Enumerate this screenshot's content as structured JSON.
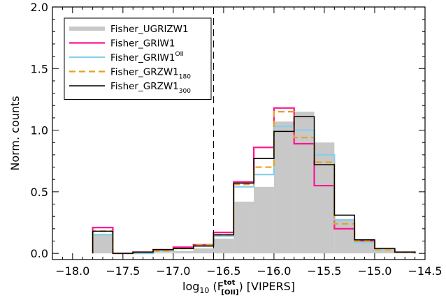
{
  "chart_data": {
    "type": "histogram",
    "xlabel_parts": {
      "prefix": "log",
      "base": "10",
      "open": " (F",
      "sup": "tot",
      "sub": "[OII]",
      "close": ") [VIPERS]"
    },
    "ylabel": "Norm. counts",
    "xlim": [
      -18.2,
      -14.5
    ],
    "ylim": [
      -0.05,
      2.0
    ],
    "xticks": [
      {
        "v": -18.0,
        "label": "−18.0"
      },
      {
        "v": -17.5,
        "label": "−17.5"
      },
      {
        "v": -17.0,
        "label": "−17.0"
      },
      {
        "v": -16.5,
        "label": "−16.5"
      },
      {
        "v": -16.0,
        "label": "−16.0"
      },
      {
        "v": -15.5,
        "label": "−15.5"
      },
      {
        "v": -15.0,
        "label": "−15.0"
      },
      {
        "v": -14.5,
        "label": "−14.5"
      }
    ],
    "yticks": [
      {
        "v": 0.0,
        "label": "0.0"
      },
      {
        "v": 0.5,
        "label": "0.5"
      },
      {
        "v": 1.0,
        "label": "1.0"
      },
      {
        "v": 1.5,
        "label": "1.5"
      },
      {
        "v": 2.0,
        "label": "2.0"
      }
    ],
    "bin_edges": [
      -17.8,
      -17.6,
      -17.4,
      -17.2,
      -17.0,
      -16.8,
      -16.6,
      -16.4,
      -16.2,
      -16.0,
      -15.8,
      -15.6,
      -15.4,
      -15.2,
      -15.0,
      -14.8,
      -14.6
    ],
    "vline_x": -16.6,
    "series": [
      {
        "name": "Fisher_UGRIZW1",
        "name_sub": "",
        "name_sup": "",
        "style": "filled",
        "color": "#c8c8c8",
        "values": [
          0.16,
          0.0,
          0.0,
          0.01,
          0.02,
          0.04,
          0.12,
          0.42,
          0.54,
          1.07,
          1.15,
          0.9,
          0.28,
          0.09,
          0.03,
          0.01
        ]
      },
      {
        "name": "Fisher_GRIW1",
        "name_sub": "",
        "name_sup": "",
        "style": "solid",
        "color": "#ff1493",
        "values": [
          0.21,
          0.0,
          0.01,
          0.03,
          0.05,
          0.07,
          0.17,
          0.58,
          0.86,
          1.18,
          0.89,
          0.55,
          0.2,
          0.1,
          0.03,
          0.01
        ]
      },
      {
        "name": "Fisher_GRIW1",
        "name_sub": "",
        "name_sup": "OII",
        "style": "solid",
        "color": "#87ceeb",
        "values": [
          0.15,
          0.0,
          0.0,
          0.02,
          0.04,
          0.06,
          0.14,
          0.54,
          0.64,
          1.03,
          1.0,
          0.8,
          0.27,
          0.09,
          0.03,
          0.01
        ]
      },
      {
        "name": "Fisher_GRZW1",
        "name_sub": "180",
        "name_sup": "",
        "style": "dashed",
        "color": "#e8a020",
        "values": [
          0.18,
          0.0,
          0.01,
          0.02,
          0.04,
          0.07,
          0.15,
          0.56,
          0.7,
          1.15,
          0.94,
          0.74,
          0.24,
          0.1,
          0.03,
          0.01
        ]
      },
      {
        "name": "Fisher_GRZW1",
        "name_sub": "300",
        "name_sup": "",
        "style": "solid",
        "color": "#000000",
        "values": [
          0.18,
          0.0,
          0.01,
          0.03,
          0.04,
          0.06,
          0.15,
          0.57,
          0.77,
          0.99,
          1.11,
          0.72,
          0.31,
          0.11,
          0.04,
          0.01
        ]
      }
    ]
  }
}
